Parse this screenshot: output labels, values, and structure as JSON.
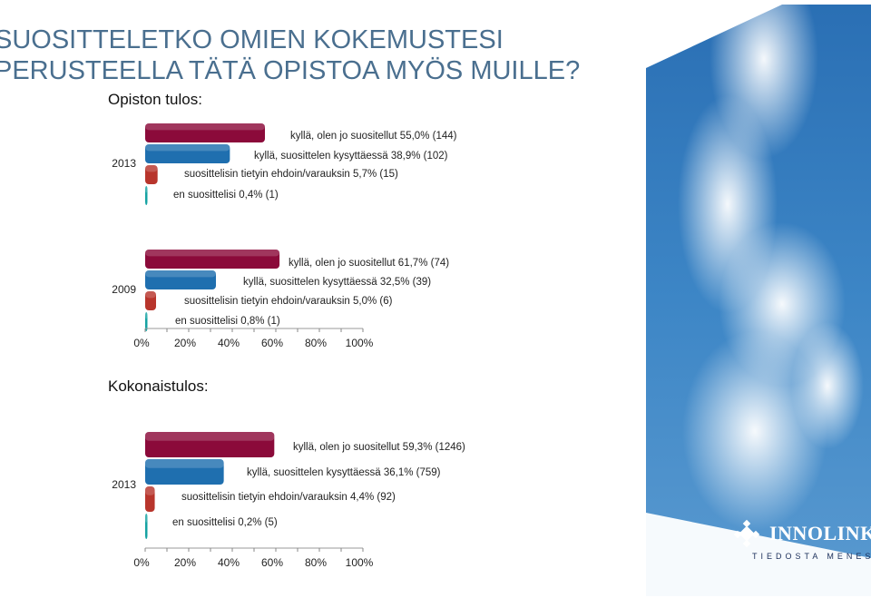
{
  "title_lines": [
    "SUOSITTELETKO OMIEN KOKEMUSTESI",
    "PERUSTEELLA TÄTÄ OPISTOA MYÖS MUILLE?"
  ],
  "section_opisto": "Opiston tulos:",
  "section_kokonais": "Kokonaistulos:",
  "logo": {
    "name": "INNOLINK",
    "tagline": "TIEDOSTA MENESTYS"
  },
  "colors": {
    "series": [
      "#8b0a3a",
      "#1f6faf",
      "#b8352c",
      "#16a3a3"
    ],
    "title": "#4a6f8f"
  },
  "chart_data": [
    {
      "type": "bar",
      "orientation": "horizontal",
      "categories": [
        "2013"
      ],
      "series_values": [
        55.0,
        38.9,
        5.7,
        0.4
      ],
      "labels": [
        "kyllä, olen jo suositellut 55,0% (144)",
        "kyllä, suosittelen kysyttäessä 38,9% (102)",
        "suosittelisin tietyin ehdoin/varauksin 5,7% (15)",
        "en suosittelisi 0,4% (1)"
      ],
      "xlim": [
        0,
        100
      ]
    },
    {
      "type": "bar",
      "orientation": "horizontal",
      "categories": [
        "2009"
      ],
      "series_values": [
        61.7,
        32.5,
        5.0,
        0.8
      ],
      "labels": [
        "kyllä, olen jo suositellut 61,7% (74)",
        "kyllä, suosittelen kysyttäessä 32,5% (39)",
        "suosittelisin tietyin ehdoin/varauksin 5,0% (6)",
        "en suosittelisi 0,8% (1)"
      ],
      "xlim": [
        0,
        100
      ],
      "xticks": [
        "0%",
        "20%",
        "40%",
        "60%",
        "80%",
        "100%"
      ]
    },
    {
      "type": "bar",
      "orientation": "horizontal",
      "categories": [
        "2013"
      ],
      "series_values": [
        59.3,
        36.1,
        4.4,
        0.2
      ],
      "labels": [
        "kyllä, olen jo suositellut 59,3% (1246)",
        "kyllä, suosittelen kysyttäessä 36,1% (759)",
        "suosittelisin tietyin ehdoin/varauksin 4,4% (92)",
        "en suosittelisi 0,2% (5)"
      ],
      "xlim": [
        0,
        100
      ],
      "xticks": [
        "0%",
        "20%",
        "40%",
        "60%",
        "80%",
        "100%"
      ]
    }
  ]
}
